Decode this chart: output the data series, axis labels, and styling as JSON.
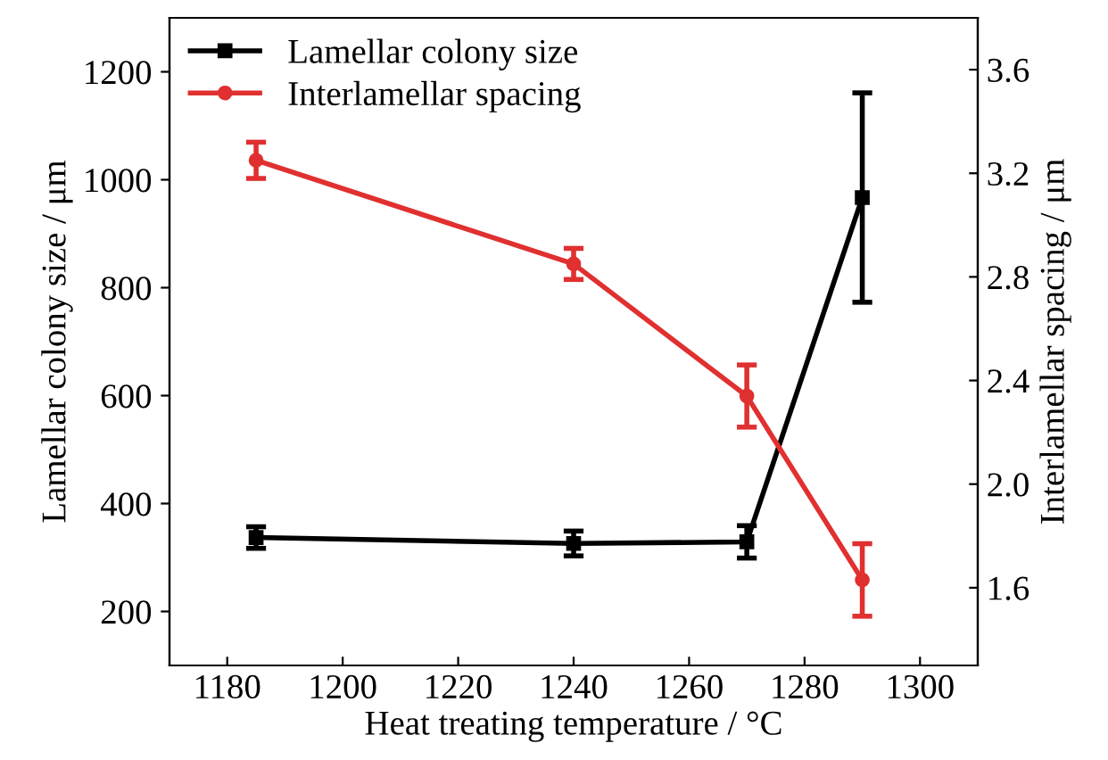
{
  "chart_data": {
    "type": "line",
    "xlabel": "Heat treating temperature / °C",
    "ylabel": "Lamellar colony size / μm",
    "y2label": "Interlamellar spacing / μm",
    "x": [
      1185,
      1240,
      1270,
      1290
    ],
    "series": [
      {
        "name": "Lamellar colony size",
        "color": "#000000",
        "marker": "square",
        "values": [
          337,
          326,
          329,
          967
        ],
        "errors": [
          20,
          23,
          30,
          194
        ]
      },
      {
        "name": "Interlamellar spacing",
        "color": "#e03030",
        "marker": "circle",
        "axis": "y2",
        "values": [
          3.25,
          2.85,
          2.34,
          1.63
        ],
        "errors": [
          0.07,
          0.06,
          0.12,
          0.14
        ]
      }
    ],
    "xlim": [
      1170,
      1310
    ],
    "xticks": [
      1180,
      1200,
      1220,
      1240,
      1260,
      1280,
      1300
    ],
    "ylim": [
      100,
      1300
    ],
    "yticks": [
      200,
      400,
      600,
      800,
      1000,
      1200
    ],
    "y2lim": [
      1.3,
      3.8
    ],
    "y2ticks": [
      {
        "value": 1.6,
        "label": "1.6"
      },
      {
        "value": 2.0,
        "label": "2.0"
      },
      {
        "value": 2.4,
        "label": "2.4"
      },
      {
        "value": 2.8,
        "label": "2.8"
      },
      {
        "value": 3.2,
        "label": "3.2"
      },
      {
        "value": 3.6,
        "label": "3.6"
      }
    ],
    "legend": "top left",
    "grid": false,
    "line_style": "solid"
  }
}
